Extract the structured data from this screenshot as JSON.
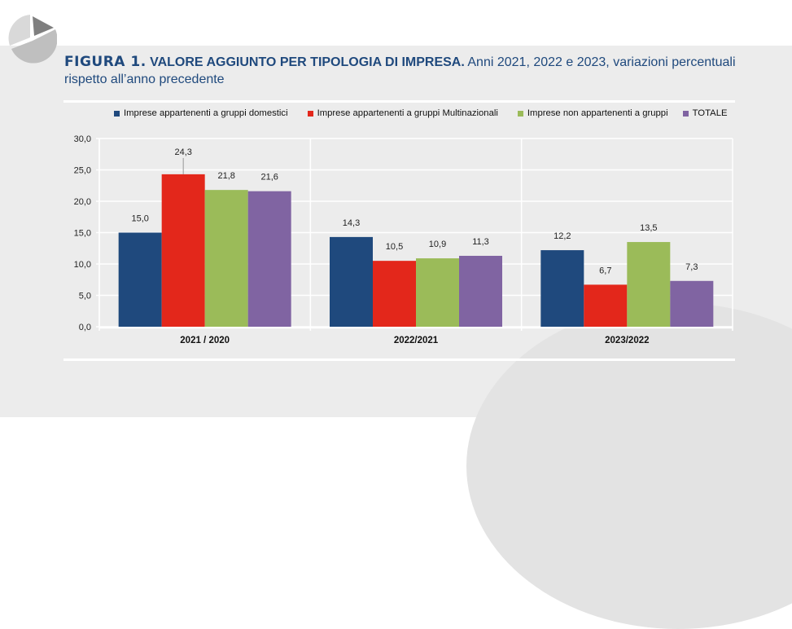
{
  "header": {
    "figure_label": "FIGURA 1.",
    "title_main": "VALORE AGGIUNTO PER TIPOLOGIA DI  IMPRESA.",
    "title_sub_line1": "Anni 2021, 2022 e 2023, variazioni percentuali",
    "title_sub_line2": "rispetto all’anno precedente"
  },
  "logo": {
    "icon": "pie-chart-icon"
  },
  "colors": {
    "domestici": "#1f497d",
    "multinazionali": "#e3271b",
    "non_gruppi": "#9bbb59",
    "totale": "#8064a2",
    "title": "#1f497d",
    "panel": "#ececec"
  },
  "chart_data": {
    "type": "bar",
    "title": "VALORE AGGIUNTO PER TIPOLOGIA DI IMPRESA. Anni 2021, 2022 e 2023, variazioni percentuali rispetto all’anno precedente",
    "xlabel": "",
    "ylabel": "",
    "categories": [
      "2021 / 2020",
      "2022/2021",
      "2023/2022"
    ],
    "series": [
      {
        "name": "Imprese appartenenti a gruppi domestici",
        "color": "#1f497d",
        "values": [
          15.0,
          14.3,
          12.2
        ],
        "labels": [
          "15,0",
          "14,3",
          "12,2"
        ]
      },
      {
        "name": "Imprese appartenenti a gruppi Multinazionali",
        "color": "#e3271b",
        "values": [
          24.3,
          10.5,
          6.7
        ],
        "labels": [
          "24,3",
          "10,5",
          "6,7"
        ]
      },
      {
        "name": "Imprese non appartenenti a gruppi",
        "color": "#9bbb59",
        "values": [
          21.8,
          10.9,
          13.5
        ],
        "labels": [
          "21,8",
          "10,9",
          "13,5"
        ]
      },
      {
        "name": "TOTALE",
        "color": "#8064a2",
        "values": [
          21.6,
          11.3,
          7.3
        ],
        "labels": [
          "21,6",
          "11,3",
          "7,3"
        ]
      }
    ],
    "ylim": [
      0,
      30
    ],
    "yticks": [
      0,
      5,
      10,
      15,
      20,
      25,
      30
    ],
    "ytick_labels": [
      "0,0",
      "5,0",
      "10,0",
      "15,0",
      "20,0",
      "25,0",
      "30,0"
    ],
    "grid": true,
    "legend": "top"
  }
}
